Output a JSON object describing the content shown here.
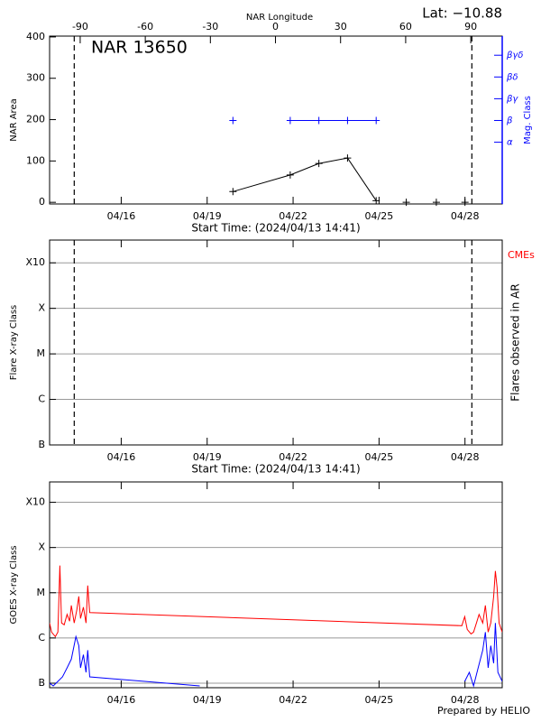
{
  "chart_data": [
    {
      "type": "line",
      "annotation": "NAR 13650",
      "latitude": "Lat: −10.88",
      "x2label": "NAR Longitude",
      "xlabel": "Start Time: (2024/04/13 14:41)",
      "ylabel": "NAR Area",
      "y2label": "Mag. Class",
      "xlim": [
        13.5,
        29.3
      ],
      "xticks": [
        {
          "value": 16,
          "label": "04/16"
        },
        {
          "value": 19,
          "label": "04/19"
        },
        {
          "value": 22,
          "label": "04/22"
        },
        {
          "value": 25,
          "label": "04/25"
        },
        {
          "value": 28,
          "label": "04/28"
        }
      ],
      "x2lim": [
        -104.1,
        104.5
      ],
      "x2ticks": [
        -90,
        -60,
        -30,
        0,
        30,
        60,
        90
      ],
      "ylim": [
        -4,
        402
      ],
      "yticks": [
        0,
        100,
        200,
        300,
        400
      ],
      "y2lim": [
        0.16,
        7.88
      ],
      "y2ticks": [
        {
          "value": 3,
          "label": "α"
        },
        {
          "value": 4,
          "label": "β"
        },
        {
          "value": 5,
          "label": "βγ"
        },
        {
          "value": 6,
          "label": "βδ"
        },
        {
          "value": 7,
          "label": "βγδ"
        }
      ],
      "vlines": [
        14.36,
        28.24
      ],
      "grid": false,
      "series": [
        {
          "color": "#000000",
          "marker": "+",
          "x": [
            19.9,
            21.9,
            22.9,
            23.9,
            24.9
          ],
          "values": [
            26,
            66,
            94,
            107,
            4
          ]
        },
        {
          "color": "#000000",
          "marker": "+",
          "line": false,
          "x": [
            25.95,
            27.0,
            28.0
          ],
          "values": [
            0,
            0,
            0
          ]
        },
        {
          "color": "#0000ff",
          "marker": "+",
          "axis": "y2",
          "x": [
            19.9,
            20.9,
            21.9,
            22.9,
            23.9,
            24.9
          ],
          "values": [
            4,
            null,
            4,
            4,
            4,
            4
          ]
        }
      ]
    },
    {
      "type": "line",
      "xlabel": "Start Time: (2024/04/13 14:41)",
      "ylabel": "Flare X-ray Class",
      "y2label": "Flares observed in AR",
      "xlim": [
        13.5,
        29.3
      ],
      "xticks": [
        {
          "value": 16,
          "label": "04/16"
        },
        {
          "value": 19,
          "label": "04/19"
        },
        {
          "value": 22,
          "label": "04/22"
        },
        {
          "value": 25,
          "label": "04/25"
        },
        {
          "value": 28,
          "label": "04/28"
        }
      ],
      "ylim": [
        0,
        4.5
      ],
      "yticks": [
        {
          "value": 0,
          "label": "B"
        },
        {
          "value": 1,
          "label": "C"
        },
        {
          "value": 2,
          "label": "M"
        },
        {
          "value": 3,
          "label": "X"
        },
        {
          "value": 4,
          "label": "X10"
        }
      ],
      "vlines": [
        14.36,
        28.24
      ],
      "grid": true,
      "series": [
        {
          "name": "CMEs",
          "color": "#ff0000",
          "x": [],
          "values": []
        }
      ]
    },
    {
      "type": "line",
      "ylabel": "GOES X-ray Class",
      "footer": "Prepared by HELIO",
      "xlim": [
        13.5,
        29.3
      ],
      "xticks": [
        {
          "value": 16,
          "label": "04/16"
        },
        {
          "value": 19,
          "label": "04/19"
        },
        {
          "value": 22,
          "label": "04/22"
        },
        {
          "value": 25,
          "label": "04/25"
        },
        {
          "value": 28,
          "label": "04/28"
        }
      ],
      "ylim": [
        -0.1,
        4.45
      ],
      "yticks": [
        {
          "value": 0,
          "label": "B"
        },
        {
          "value": 1,
          "label": "C"
        },
        {
          "value": 2,
          "label": "M"
        },
        {
          "value": 3,
          "label": "X"
        },
        {
          "value": 4,
          "label": "X10"
        }
      ],
      "grid": true,
      "series": [
        {
          "color": "#ff0000",
          "x": [
            13.5,
            13.57,
            13.7,
            13.79,
            13.86,
            13.92,
            14.01,
            14.11,
            14.2,
            14.26,
            14.36,
            14.45,
            14.52,
            14.58,
            14.68,
            14.77,
            14.83,
            14.9,
            27.89,
            27.99,
            28.08,
            28.21,
            28.3,
            28.4,
            28.49,
            28.62,
            28.71,
            28.81,
            28.9,
            29.0,
            29.06,
            29.12,
            29.19,
            29.3
          ],
          "values": [
            1.33,
            1.13,
            1.03,
            1.13,
            2.6,
            1.33,
            1.29,
            1.52,
            1.37,
            1.72,
            1.33,
            1.62,
            1.92,
            1.43,
            1.68,
            1.33,
            2.16,
            1.56,
            1.27,
            1.47,
            1.19,
            1.09,
            1.13,
            1.33,
            1.52,
            1.33,
            1.72,
            1.13,
            1.33,
            1.92,
            2.48,
            2.12,
            1.33,
            1.13
          ]
        },
        {
          "color": "#0000ff",
          "x": [
            13.5,
            13.63,
            13.79,
            13.95,
            14.11,
            14.26,
            14.42,
            14.52,
            14.58,
            14.68,
            14.77,
            14.83,
            14.9,
            18.74,
            23.0,
            27.99,
            28.15,
            28.3,
            28.46,
            28.62,
            28.71,
            28.81,
            28.9,
            29.0,
            29.06,
            29.15,
            29.3
          ],
          "values": [
            0,
            -0.06,
            0.04,
            0.14,
            0.34,
            0.53,
            1.03,
            0.83,
            0.34,
            0.63,
            0.24,
            0.73,
            0.14,
            -0.06,
            null,
            0.04,
            0.24,
            -0.06,
            0.34,
            0.73,
            1.13,
            0.34,
            0.83,
            0.44,
            1.33,
            0.24,
            0.04
          ]
        }
      ]
    }
  ]
}
